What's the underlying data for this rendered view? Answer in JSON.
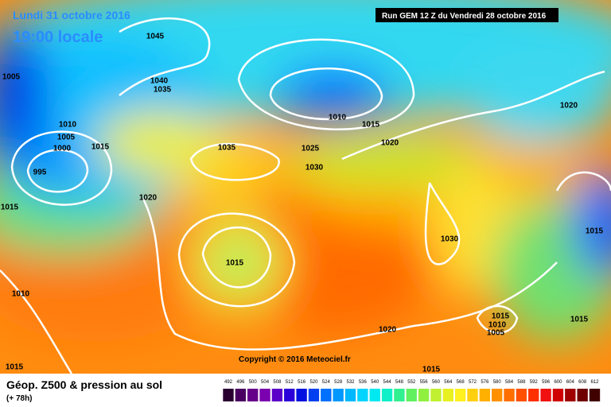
{
  "header": {
    "date": "Lundi 31 octobre 2016",
    "time": "19:00 locale",
    "run": "Run GEM 12 Z du Vendredi 28 octobre 2016"
  },
  "isobars": [
    "1045",
    "1005",
    "1040",
    "1035",
    "1010",
    "1005",
    "1000",
    "1015",
    "995",
    "1015",
    "1020",
    "1035",
    "1025",
    "1030",
    "1010",
    "1015",
    "1020",
    "1020",
    "1015",
    "1010",
    "1030",
    "1015",
    "1015",
    "1010",
    "1005",
    "1015",
    "1020",
    "1015",
    "1015"
  ],
  "copyright": "Copyright © 2016 Meteociel.fr",
  "legend": {
    "title": "Géop. Z500 & pression au sol",
    "lead": "(+ 78h)",
    "ticks": [
      492,
      496,
      500,
      504,
      508,
      512,
      516,
      520,
      524,
      528,
      532,
      536,
      540,
      544,
      548,
      552,
      556,
      560,
      564,
      568,
      572,
      576,
      580,
      584,
      588,
      592,
      596,
      600,
      604,
      608,
      612
    ],
    "colors": [
      "#2a0030",
      "#4a0060",
      "#66008a",
      "#7a00b0",
      "#5a00c8",
      "#2c00d8",
      "#0010e0",
      "#0040f0",
      "#0070ff",
      "#0098ff",
      "#00b8ff",
      "#00d4ff",
      "#00e8f0",
      "#10f0c8",
      "#30f090",
      "#60f060",
      "#90f040",
      "#c0f030",
      "#e8f020",
      "#fff020",
      "#ffd010",
      "#ffb000",
      "#ff9000",
      "#ff7000",
      "#ff5000",
      "#ff3000",
      "#f01010",
      "#d00000",
      "#a00000",
      "#700000",
      "#400000"
    ]
  }
}
